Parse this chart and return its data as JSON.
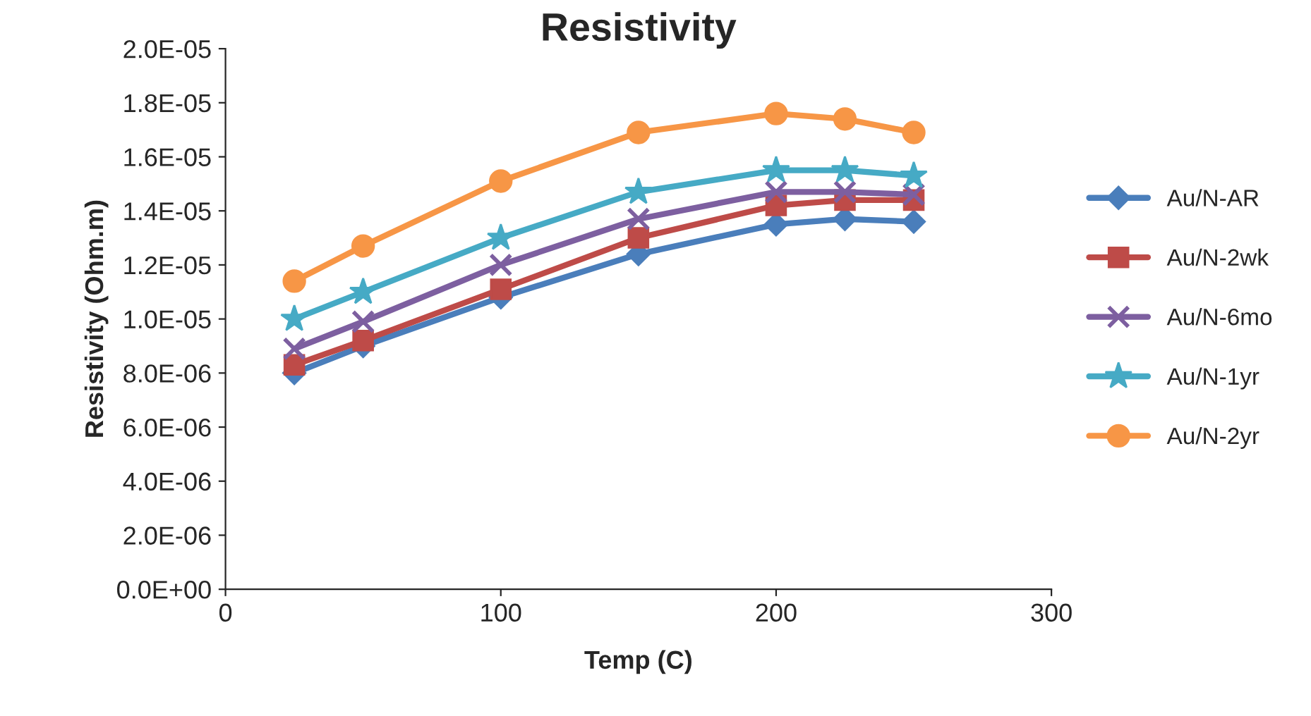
{
  "chart_data": {
    "type": "line",
    "title": "Resistivity",
    "xlabel": "Temp (C)",
    "ylabel": "Resistivity (Ohm.m)",
    "x": [
      25,
      50,
      100,
      150,
      200,
      225,
      250
    ],
    "series": [
      {
        "name": "Au/N-AR",
        "color": "#4a7ebb",
        "marker": "diamond",
        "values": [
          8e-06,
          9e-06,
          1.08e-05,
          1.24e-05,
          1.35e-05,
          1.37e-05,
          1.36e-05
        ]
      },
      {
        "name": "Au/N-2wk",
        "color": "#be4b48",
        "marker": "square",
        "values": [
          8.3e-06,
          9.2e-06,
          1.11e-05,
          1.3e-05,
          1.42e-05,
          1.44e-05,
          1.44e-05
        ]
      },
      {
        "name": "Au/N-6mo",
        "color": "#7d5fa0",
        "marker": "cross",
        "values": [
          8.9e-06,
          9.9e-06,
          1.2e-05,
          1.37e-05,
          1.47e-05,
          1.47e-05,
          1.46e-05
        ]
      },
      {
        "name": "Au/N-1yr",
        "color": "#46aac5",
        "marker": "star",
        "values": [
          1e-05,
          1.1e-05,
          1.3e-05,
          1.47e-05,
          1.55e-05,
          1.55e-05,
          1.53e-05
        ]
      },
      {
        "name": "Au/N-2yr",
        "color": "#f79646",
        "marker": "circle",
        "values": [
          1.14e-05,
          1.27e-05,
          1.51e-05,
          1.69e-05,
          1.76e-05,
          1.74e-05,
          1.69e-05
        ]
      }
    ],
    "xlim": [
      0,
      300
    ],
    "xticks": [
      0,
      100,
      200,
      300
    ],
    "ylim": [
      0,
      2e-05
    ],
    "yticks": [
      {
        "value": 0,
        "label": "0.0E+00"
      },
      {
        "value": 2e-06,
        "label": "2.0E-06"
      },
      {
        "value": 4e-06,
        "label": "4.0E-06"
      },
      {
        "value": 6e-06,
        "label": "6.0E-06"
      },
      {
        "value": 8e-06,
        "label": "8.0E-06"
      },
      {
        "value": 1e-05,
        "label": "1.0E-05"
      },
      {
        "value": 1.2e-05,
        "label": "1.2E-05"
      },
      {
        "value": 1.4e-05,
        "label": "1.4E-05"
      },
      {
        "value": 1.6e-05,
        "label": "1.6E-05"
      },
      {
        "value": 1.8e-05,
        "label": "1.8E-05"
      },
      {
        "value": 2e-05,
        "label": "2.0E-05"
      }
    ],
    "grid": false,
    "legend": "right",
    "line_style": "solid"
  }
}
